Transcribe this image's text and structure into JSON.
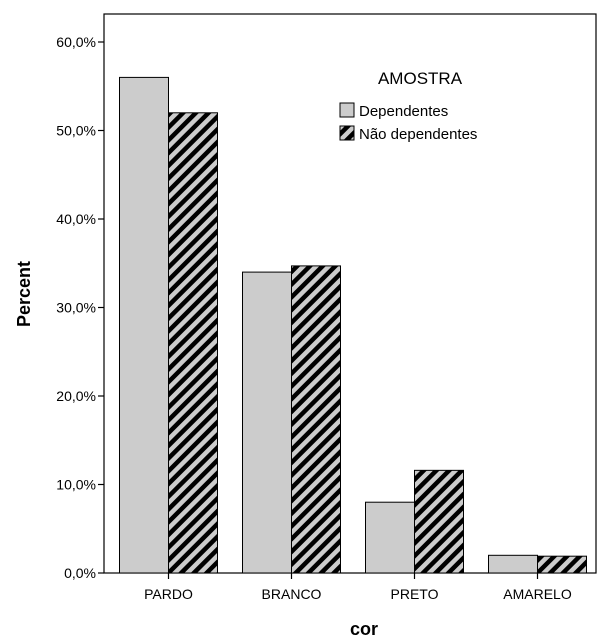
{
  "chart_data": {
    "type": "bar",
    "title": "",
    "xlabel": "cor",
    "ylabel": "Percent",
    "categories": [
      "PARDO",
      "BRANCO",
      "PRETO",
      "AMARELO"
    ],
    "series": [
      {
        "name": "Dependentes",
        "values": [
          56.0,
          34.0,
          8.0,
          2.0
        ],
        "fill": "#cccccc",
        "pattern": "solid"
      },
      {
        "name": "Não dependentes",
        "values": [
          52.0,
          34.7,
          11.6,
          1.9
        ],
        "fill": "#cccccc",
        "pattern": "diagonal-hatch"
      }
    ],
    "ylim": [
      0,
      60
    ],
    "yticks": [
      "0,0%",
      "10,0%",
      "20,0%",
      "30,0%",
      "40,0%",
      "50,0%",
      "60,0%"
    ],
    "legend": {
      "title": "AMOSTRA",
      "placement": "top-right"
    },
    "grid": false
  }
}
